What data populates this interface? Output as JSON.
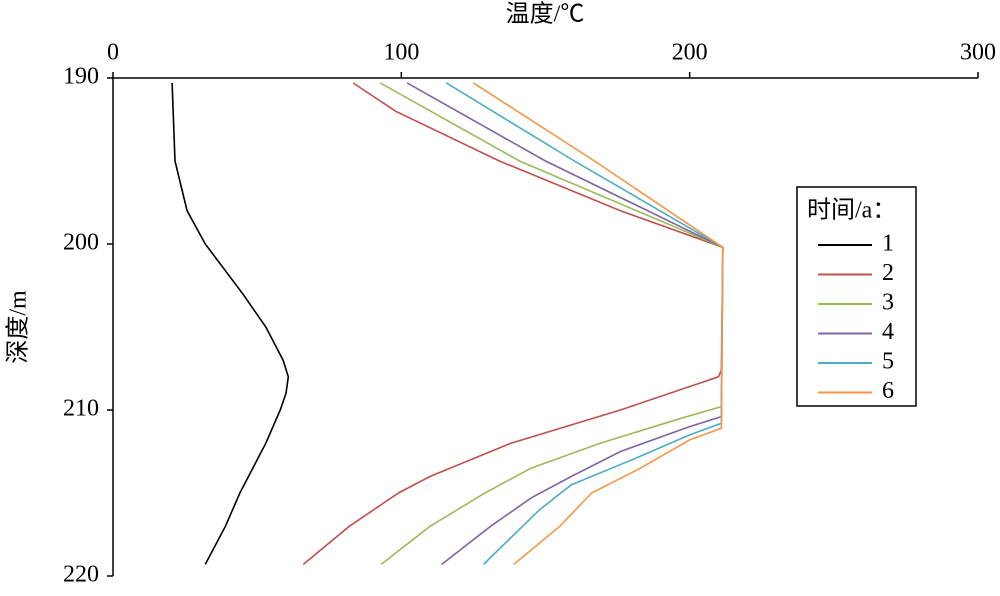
{
  "chart_data": {
    "type": "line",
    "xlabel": "温度/℃",
    "ylabel": "深度/m",
    "xlim": [
      0,
      300
    ],
    "xticks": [
      0,
      100,
      200,
      300
    ],
    "ylim": [
      190,
      220
    ],
    "yticks": [
      190,
      200,
      210,
      220
    ],
    "y_inverted": true,
    "x_axis_position": "top",
    "legend_title": "时间/a：",
    "legend_position": "right",
    "series": [
      {
        "name": "1",
        "color": "#000000",
        "x": [
          20.5,
          21.5,
          25.7,
          32,
          45,
          53,
          59,
          60.8,
          60,
          58,
          53,
          44,
          39,
          32
        ],
        "y": [
          190.3,
          195,
          198,
          200,
          203,
          205,
          207,
          208,
          209,
          210,
          212,
          215,
          217,
          219.3
        ]
      },
      {
        "name": "2",
        "color": "#c0504d",
        "x": [
          83.3,
          98,
          134,
          176,
          211.5,
          211,
          210,
          193,
          176,
          138,
          110,
          99,
          82,
          66
        ],
        "y": [
          190.3,
          192,
          195,
          198,
          200.2,
          207.6,
          208,
          209,
          210,
          212,
          214,
          215,
          217,
          219.3
        ]
      },
      {
        "name": "3",
        "color": "#9bbb59",
        "x": [
          92.7,
          141,
          211.5,
          211,
          197,
          169,
          145,
          129,
          110,
          93
        ],
        "y": [
          190.3,
          195,
          200.2,
          209.8,
          210.5,
          212,
          213.5,
          215,
          217,
          219.3
        ]
      },
      {
        "name": "4",
        "color": "#8064a2",
        "x": [
          102,
          150,
          211.5,
          211,
          200,
          176,
          159,
          145,
          131,
          114
        ],
        "y": [
          190.3,
          195,
          200.2,
          210.4,
          211,
          212.5,
          214,
          215.3,
          217,
          219.3
        ]
      },
      {
        "name": "5",
        "color": "#4bacc6",
        "x": [
          115.6,
          160,
          211.5,
          211,
          200,
          180,
          159,
          148,
          128.5
        ],
        "y": [
          190.3,
          195,
          200.2,
          210.8,
          211.5,
          213,
          214.5,
          216,
          219.3
        ]
      },
      {
        "name": "6",
        "color": "#f79646",
        "x": [
          125,
          167,
          211.5,
          211,
          200,
          183,
          166,
          155,
          139
        ],
        "y": [
          190.3,
          195,
          200.2,
          211.1,
          211.8,
          213.5,
          215,
          217,
          219.3
        ]
      }
    ]
  }
}
